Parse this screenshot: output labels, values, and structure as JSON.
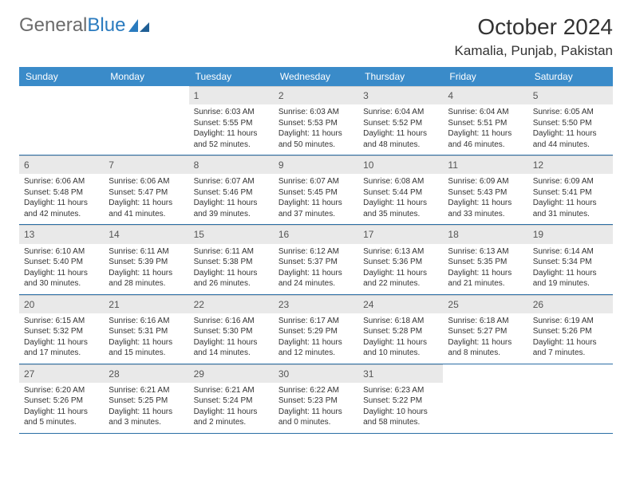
{
  "logo": {
    "text1": "General",
    "text2": "Blue"
  },
  "title": "October 2024",
  "location": "Kamalia, Punjab, Pakistan",
  "colors": {
    "header_bg": "#3a8bc9",
    "header_text": "#ffffff",
    "daynum_bg": "#e9e9e9",
    "week_border": "#2a6ea5",
    "logo_gray": "#6b6b6b",
    "logo_blue": "#2a7bbf"
  },
  "dow": [
    "Sunday",
    "Monday",
    "Tuesday",
    "Wednesday",
    "Thursday",
    "Friday",
    "Saturday"
  ],
  "weeks": [
    [
      {
        "n": "",
        "sr": "",
        "ss": "",
        "dl": ""
      },
      {
        "n": "",
        "sr": "",
        "ss": "",
        "dl": ""
      },
      {
        "n": "1",
        "sr": "Sunrise: 6:03 AM",
        "ss": "Sunset: 5:55 PM",
        "dl": "Daylight: 11 hours and 52 minutes."
      },
      {
        "n": "2",
        "sr": "Sunrise: 6:03 AM",
        "ss": "Sunset: 5:53 PM",
        "dl": "Daylight: 11 hours and 50 minutes."
      },
      {
        "n": "3",
        "sr": "Sunrise: 6:04 AM",
        "ss": "Sunset: 5:52 PM",
        "dl": "Daylight: 11 hours and 48 minutes."
      },
      {
        "n": "4",
        "sr": "Sunrise: 6:04 AM",
        "ss": "Sunset: 5:51 PM",
        "dl": "Daylight: 11 hours and 46 minutes."
      },
      {
        "n": "5",
        "sr": "Sunrise: 6:05 AM",
        "ss": "Sunset: 5:50 PM",
        "dl": "Daylight: 11 hours and 44 minutes."
      }
    ],
    [
      {
        "n": "6",
        "sr": "Sunrise: 6:06 AM",
        "ss": "Sunset: 5:48 PM",
        "dl": "Daylight: 11 hours and 42 minutes."
      },
      {
        "n": "7",
        "sr": "Sunrise: 6:06 AM",
        "ss": "Sunset: 5:47 PM",
        "dl": "Daylight: 11 hours and 41 minutes."
      },
      {
        "n": "8",
        "sr": "Sunrise: 6:07 AM",
        "ss": "Sunset: 5:46 PM",
        "dl": "Daylight: 11 hours and 39 minutes."
      },
      {
        "n": "9",
        "sr": "Sunrise: 6:07 AM",
        "ss": "Sunset: 5:45 PM",
        "dl": "Daylight: 11 hours and 37 minutes."
      },
      {
        "n": "10",
        "sr": "Sunrise: 6:08 AM",
        "ss": "Sunset: 5:44 PM",
        "dl": "Daylight: 11 hours and 35 minutes."
      },
      {
        "n": "11",
        "sr": "Sunrise: 6:09 AM",
        "ss": "Sunset: 5:43 PM",
        "dl": "Daylight: 11 hours and 33 minutes."
      },
      {
        "n": "12",
        "sr": "Sunrise: 6:09 AM",
        "ss": "Sunset: 5:41 PM",
        "dl": "Daylight: 11 hours and 31 minutes."
      }
    ],
    [
      {
        "n": "13",
        "sr": "Sunrise: 6:10 AM",
        "ss": "Sunset: 5:40 PM",
        "dl": "Daylight: 11 hours and 30 minutes."
      },
      {
        "n": "14",
        "sr": "Sunrise: 6:11 AM",
        "ss": "Sunset: 5:39 PM",
        "dl": "Daylight: 11 hours and 28 minutes."
      },
      {
        "n": "15",
        "sr": "Sunrise: 6:11 AM",
        "ss": "Sunset: 5:38 PM",
        "dl": "Daylight: 11 hours and 26 minutes."
      },
      {
        "n": "16",
        "sr": "Sunrise: 6:12 AM",
        "ss": "Sunset: 5:37 PM",
        "dl": "Daylight: 11 hours and 24 minutes."
      },
      {
        "n": "17",
        "sr": "Sunrise: 6:13 AM",
        "ss": "Sunset: 5:36 PM",
        "dl": "Daylight: 11 hours and 22 minutes."
      },
      {
        "n": "18",
        "sr": "Sunrise: 6:13 AM",
        "ss": "Sunset: 5:35 PM",
        "dl": "Daylight: 11 hours and 21 minutes."
      },
      {
        "n": "19",
        "sr": "Sunrise: 6:14 AM",
        "ss": "Sunset: 5:34 PM",
        "dl": "Daylight: 11 hours and 19 minutes."
      }
    ],
    [
      {
        "n": "20",
        "sr": "Sunrise: 6:15 AM",
        "ss": "Sunset: 5:32 PM",
        "dl": "Daylight: 11 hours and 17 minutes."
      },
      {
        "n": "21",
        "sr": "Sunrise: 6:16 AM",
        "ss": "Sunset: 5:31 PM",
        "dl": "Daylight: 11 hours and 15 minutes."
      },
      {
        "n": "22",
        "sr": "Sunrise: 6:16 AM",
        "ss": "Sunset: 5:30 PM",
        "dl": "Daylight: 11 hours and 14 minutes."
      },
      {
        "n": "23",
        "sr": "Sunrise: 6:17 AM",
        "ss": "Sunset: 5:29 PM",
        "dl": "Daylight: 11 hours and 12 minutes."
      },
      {
        "n": "24",
        "sr": "Sunrise: 6:18 AM",
        "ss": "Sunset: 5:28 PM",
        "dl": "Daylight: 11 hours and 10 minutes."
      },
      {
        "n": "25",
        "sr": "Sunrise: 6:18 AM",
        "ss": "Sunset: 5:27 PM",
        "dl": "Daylight: 11 hours and 8 minutes."
      },
      {
        "n": "26",
        "sr": "Sunrise: 6:19 AM",
        "ss": "Sunset: 5:26 PM",
        "dl": "Daylight: 11 hours and 7 minutes."
      }
    ],
    [
      {
        "n": "27",
        "sr": "Sunrise: 6:20 AM",
        "ss": "Sunset: 5:26 PM",
        "dl": "Daylight: 11 hours and 5 minutes."
      },
      {
        "n": "28",
        "sr": "Sunrise: 6:21 AM",
        "ss": "Sunset: 5:25 PM",
        "dl": "Daylight: 11 hours and 3 minutes."
      },
      {
        "n": "29",
        "sr": "Sunrise: 6:21 AM",
        "ss": "Sunset: 5:24 PM",
        "dl": "Daylight: 11 hours and 2 minutes."
      },
      {
        "n": "30",
        "sr": "Sunrise: 6:22 AM",
        "ss": "Sunset: 5:23 PM",
        "dl": "Daylight: 11 hours and 0 minutes."
      },
      {
        "n": "31",
        "sr": "Sunrise: 6:23 AM",
        "ss": "Sunset: 5:22 PM",
        "dl": "Daylight: 10 hours and 58 minutes."
      },
      {
        "n": "",
        "sr": "",
        "ss": "",
        "dl": ""
      },
      {
        "n": "",
        "sr": "",
        "ss": "",
        "dl": ""
      }
    ]
  ]
}
